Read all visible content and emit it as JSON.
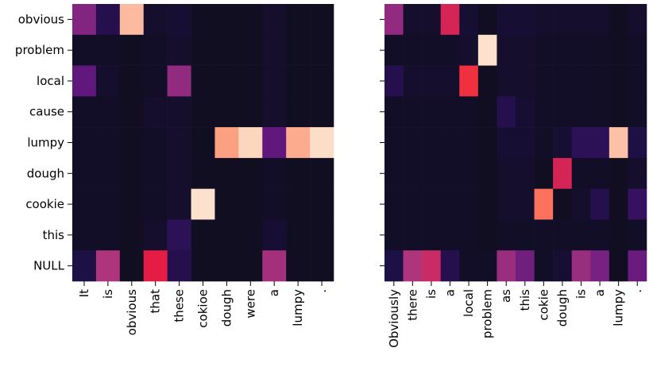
{
  "chart_data": [
    {
      "type": "heatmap",
      "title": "",
      "xlabel": "",
      "ylabel": "",
      "y_labels": [
        "obvious",
        "problem",
        "local",
        "cause",
        "lumpy",
        "dough",
        "cookie",
        "this",
        "NULL"
      ],
      "x_labels": [
        "It",
        "is",
        "obvious",
        "that",
        "these",
        "cokioe",
        "dough",
        "were",
        "a",
        "lumpy",
        "."
      ],
      "value_range": [
        0,
        1
      ],
      "colormap": "magma",
      "values": [
        [
          0.35,
          0.1,
          0.85,
          0.04,
          0.05,
          0.02,
          0.02,
          0.02,
          0.04,
          0.02,
          0.02
        ],
        [
          0.03,
          0.03,
          0.02,
          0.03,
          0.04,
          0.02,
          0.02,
          0.02,
          0.04,
          0.02,
          0.02
        ],
        [
          0.25,
          0.04,
          0.02,
          0.03,
          0.4,
          0.02,
          0.02,
          0.02,
          0.04,
          0.02,
          0.02
        ],
        [
          0.03,
          0.03,
          0.02,
          0.04,
          0.04,
          0.02,
          0.02,
          0.02,
          0.04,
          0.02,
          0.02
        ],
        [
          0.03,
          0.03,
          0.02,
          0.03,
          0.04,
          0.02,
          0.8,
          0.9,
          0.25,
          0.82,
          0.93
        ],
        [
          0.03,
          0.03,
          0.02,
          0.03,
          0.04,
          0.02,
          0.02,
          0.02,
          0.03,
          0.02,
          0.02
        ],
        [
          0.03,
          0.03,
          0.02,
          0.03,
          0.04,
          0.95,
          0.02,
          0.02,
          0.03,
          0.02,
          0.02
        ],
        [
          0.03,
          0.03,
          0.02,
          0.04,
          0.12,
          0.02,
          0.02,
          0.02,
          0.05,
          0.02,
          0.02
        ],
        [
          0.08,
          0.48,
          0.02,
          0.62,
          0.1,
          0.02,
          0.02,
          0.02,
          0.45,
          0.02,
          0.02
        ]
      ]
    },
    {
      "type": "heatmap",
      "title": "",
      "xlabel": "",
      "ylabel": "",
      "y_labels": [
        "obvious",
        "problem",
        "local",
        "cause",
        "lumpy",
        "dough",
        "cookie",
        "this",
        "NULL"
      ],
      "x_labels": [
        "Obviously",
        "there",
        "is",
        "a",
        "local",
        "problem",
        "as",
        "this",
        "cokie",
        "dough",
        "is",
        "a",
        "lumpy",
        "."
      ],
      "value_range": [
        0,
        1
      ],
      "colormap": "magma",
      "values": [
        [
          0.4,
          0.04,
          0.04,
          0.58,
          0.05,
          0.02,
          0.05,
          0.05,
          0.04,
          0.04,
          0.04,
          0.04,
          0.02,
          0.04
        ],
        [
          0.03,
          0.03,
          0.03,
          0.03,
          0.04,
          0.95,
          0.04,
          0.04,
          0.03,
          0.03,
          0.03,
          0.03,
          0.02,
          0.03
        ],
        [
          0.1,
          0.04,
          0.04,
          0.04,
          0.66,
          0.02,
          0.04,
          0.04,
          0.03,
          0.03,
          0.03,
          0.03,
          0.02,
          0.03
        ],
        [
          0.03,
          0.03,
          0.03,
          0.03,
          0.03,
          0.02,
          0.1,
          0.05,
          0.03,
          0.03,
          0.03,
          0.03,
          0.02,
          0.03
        ],
        [
          0.03,
          0.03,
          0.03,
          0.03,
          0.03,
          0.02,
          0.05,
          0.05,
          0.03,
          0.05,
          0.12,
          0.12,
          0.86,
          0.08
        ],
        [
          0.03,
          0.03,
          0.03,
          0.03,
          0.03,
          0.02,
          0.04,
          0.04,
          0.02,
          0.58,
          0.03,
          0.03,
          0.02,
          0.04
        ],
        [
          0.03,
          0.03,
          0.03,
          0.03,
          0.03,
          0.02,
          0.04,
          0.04,
          0.75,
          0.02,
          0.04,
          0.1,
          0.02,
          0.14
        ],
        [
          0.03,
          0.03,
          0.03,
          0.03,
          0.03,
          0.02,
          0.03,
          0.03,
          0.03,
          0.03,
          0.03,
          0.03,
          0.02,
          0.03
        ],
        [
          0.08,
          0.48,
          0.55,
          0.1,
          0.03,
          0.03,
          0.42,
          0.3,
          0.03,
          0.05,
          0.42,
          0.32,
          0.02,
          0.28
        ]
      ]
    }
  ]
}
